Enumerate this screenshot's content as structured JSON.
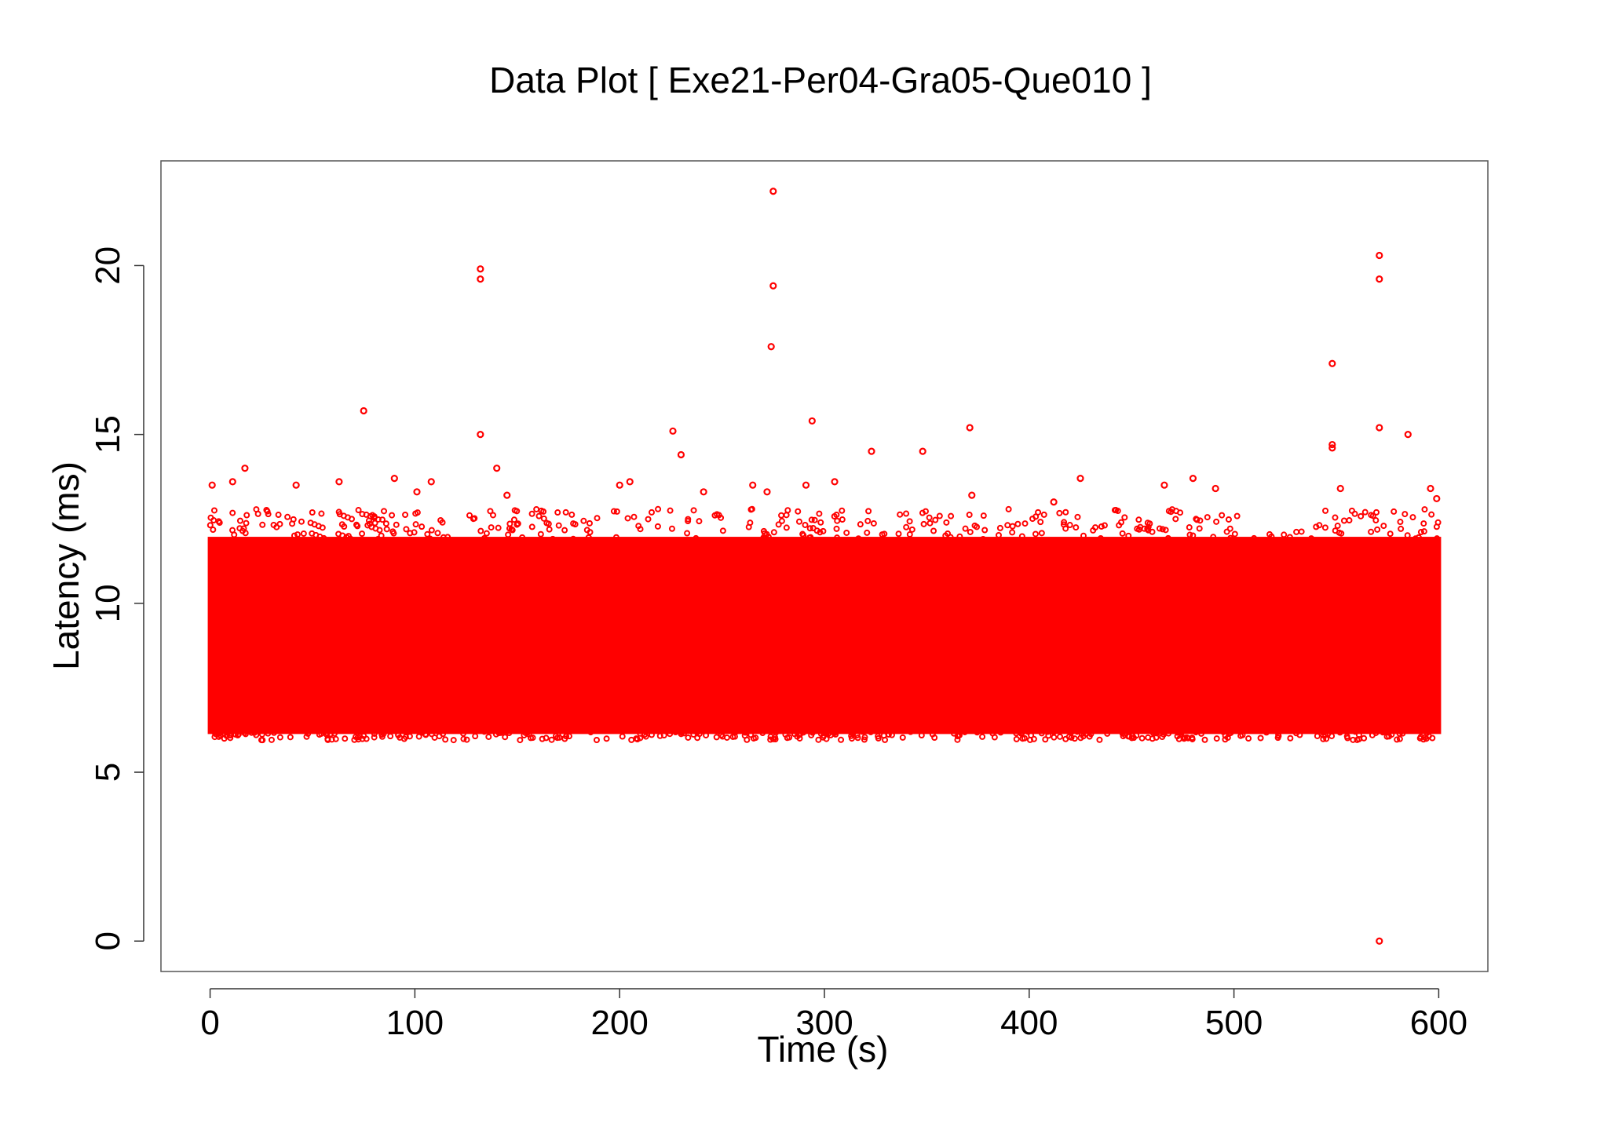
{
  "chart_data": {
    "type": "scatter",
    "title": "Data Plot [ Exe21-Per04-Gra05-Que010 ]",
    "xlabel": "Time (s)",
    "ylabel": "Latency (ms)",
    "xlim": [
      -24,
      624
    ],
    "ylim": [
      -0.9,
      23.1
    ],
    "x_ticks": [
      0,
      100,
      200,
      300,
      400,
      500,
      600
    ],
    "x_tick_labels": [
      "0",
      "100",
      "200",
      "300",
      "400",
      "500",
      "600"
    ],
    "y_ticks": [
      0,
      5,
      10,
      15,
      20
    ],
    "y_tick_labels": [
      "0",
      "5",
      "10",
      "15",
      "20"
    ],
    "grid": false,
    "legend": "none",
    "marker": "open-circle",
    "color": "#ff0000",
    "series": [
      {
        "bulk_band": {
          "x_range": [
            0,
            600
          ],
          "y_range": [
            6.2,
            11.9
          ]
        },
        "points": [
          {
            "x": 1,
            "y": 13.5
          },
          {
            "x": 11,
            "y": 13.6
          },
          {
            "x": 17,
            "y": 14.0
          },
          {
            "x": 42,
            "y": 13.5
          },
          {
            "x": 63,
            "y": 13.6
          },
          {
            "x": 75,
            "y": 15.7
          },
          {
            "x": 90,
            "y": 13.7
          },
          {
            "x": 101,
            "y": 13.3
          },
          {
            "x": 108,
            "y": 13.6
          },
          {
            "x": 132,
            "y": 19.9
          },
          {
            "x": 132,
            "y": 19.6
          },
          {
            "x": 132,
            "y": 15.0
          },
          {
            "x": 140,
            "y": 14.0
          },
          {
            "x": 145,
            "y": 13.2
          },
          {
            "x": 200,
            "y": 13.5
          },
          {
            "x": 205,
            "y": 13.6
          },
          {
            "x": 226,
            "y": 15.1
          },
          {
            "x": 230,
            "y": 14.4
          },
          {
            "x": 241,
            "y": 13.3
          },
          {
            "x": 265,
            "y": 13.5
          },
          {
            "x": 272,
            "y": 13.3
          },
          {
            "x": 274,
            "y": 17.6
          },
          {
            "x": 275,
            "y": 22.2
          },
          {
            "x": 275,
            "y": 19.4
          },
          {
            "x": 294,
            "y": 15.4
          },
          {
            "x": 291,
            "y": 13.5
          },
          {
            "x": 305,
            "y": 13.6
          },
          {
            "x": 323,
            "y": 14.5
          },
          {
            "x": 348,
            "y": 14.5
          },
          {
            "x": 371,
            "y": 15.2
          },
          {
            "x": 372,
            "y": 13.2
          },
          {
            "x": 412,
            "y": 13.0
          },
          {
            "x": 425,
            "y": 13.7
          },
          {
            "x": 466,
            "y": 13.5
          },
          {
            "x": 480,
            "y": 13.7
          },
          {
            "x": 491,
            "y": 13.4
          },
          {
            "x": 548,
            "y": 17.1
          },
          {
            "x": 548,
            "y": 14.7
          },
          {
            "x": 548,
            "y": 14.6
          },
          {
            "x": 552,
            "y": 13.4
          },
          {
            "x": 571,
            "y": 20.3
          },
          {
            "x": 571,
            "y": 19.6
          },
          {
            "x": 571,
            "y": 15.2
          },
          {
            "x": 571,
            "y": 0.0
          },
          {
            "x": 585,
            "y": 15.0
          },
          {
            "x": 596,
            "y": 13.4
          },
          {
            "x": 599,
            "y": 13.1
          }
        ]
      }
    ]
  }
}
